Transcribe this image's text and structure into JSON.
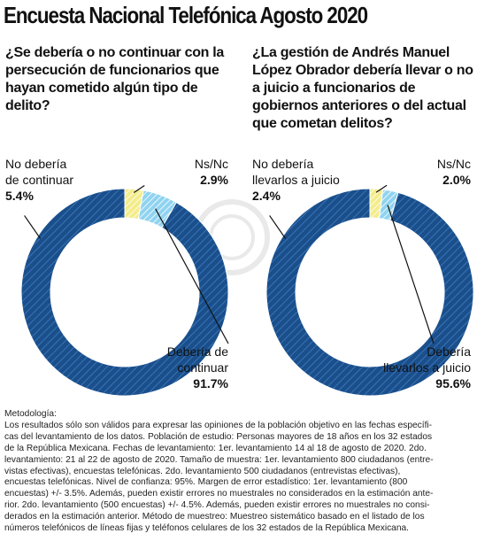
{
  "header": {
    "title": "Encuesta Nacional Telefónica Agosto 2020"
  },
  "chart_data": [
    {
      "type": "pie",
      "title": "¿Se debería o no continuar con la persecución de funcionarios que hayan cometido algún tipo de delito?",
      "slices": [
        {
          "label": "Debería de continuar",
          "value": 91.7,
          "value_label": "91.7%",
          "color": "#1a4f8c"
        },
        {
          "label": "No debería de continuar",
          "value": 5.4,
          "value_label": "5.4%",
          "color": "#8fd3f0"
        },
        {
          "label": "Ns/Nc",
          "value": 2.9,
          "value_label": "2.9%",
          "color": "#f3ec8a"
        }
      ]
    },
    {
      "type": "pie",
      "title": "¿La gestión de Andrés Manuel López Obrador debería llevar o no a juicio a funcionarios de gobiernos anteriores o del actual que cometan delitos?",
      "slices": [
        {
          "label": "Debería llevarlos a juicio",
          "value": 95.6,
          "value_label": "95.6%",
          "color": "#1a4f8c"
        },
        {
          "label": "No debería llevarlos a juicio",
          "value": 2.4,
          "value_label": "2.4%",
          "color": "#8fd3f0"
        },
        {
          "label": "Ns/Nc",
          "value": 2.0,
          "value_label": "2.0%",
          "color": "#f3ec8a"
        }
      ]
    }
  ],
  "labels": {
    "c1": {
      "yes_line1": "Debería de",
      "yes_line2": "continuar",
      "no_line1": "No debería",
      "no_line2": "de continuar",
      "ns": "Ns/Nc"
    },
    "c2": {
      "yes_line1": "Debería",
      "yes_line2": "llevarlos a juicio",
      "no_line1": "No debería",
      "no_line2": "llevarlos a juicio",
      "ns": "Ns/Nc"
    }
  },
  "methodology": {
    "heading": "Metodología:",
    "lines": [
      "Los resultados sólo son válidos para expresar las opiniones de la población objetivo en las fechas específi-",
      "cas del levantamiento de los datos. Población de estudio: Personas mayores de 18 años en los 32 estados",
      "de la República Mexicana. Fechas de levantamiento: 1er. levantamiento 14 al 18 de agosto de 2020. 2do.",
      "levantamiento: 21 al 22 de agosto de 2020. Tamaño de muestra: 1er. levantamiento 800 ciudadanos (entre-",
      "vistas efectivas), encuestas telefónicas. 2do. levantamiento 500 ciudadanos (entrevistas efectivas),",
      "encuestas telefónicas. Nivel de confianza: 95%. Margen de error estadístico: 1er. levantamiento (800",
      "encuestas) +/- 3.5%. Además, pueden existir errores no muestrales no considerados en la estimación ante-",
      "rior. 2do. levantamiento (500 encuestas) +/- 4.5%. Además, pueden existir errores no muestrales no consi-",
      "derados en la estimación anterior. Método de muestreo: Muestreo sistemático basado en el listado de los",
      "números telefónicos de líneas fijas y teléfonos celulares de los 32 estados de la República Mexicana."
    ]
  }
}
